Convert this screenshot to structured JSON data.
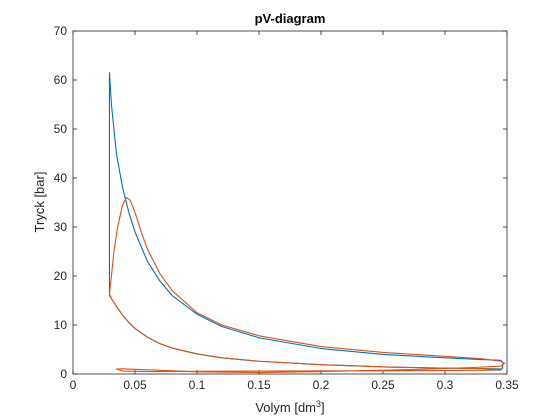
{
  "chart_data": {
    "type": "line",
    "title": "pV-diagram",
    "xlabel_main": "Volym [dm",
    "xlabel_sup": "3",
    "xlabel_close": "]",
    "ylabel": "Tryck [bar]",
    "xlim": [
      0,
      0.35
    ],
    "ylim": [
      0,
      70
    ],
    "grid": false,
    "legend": "none",
    "xticks": [
      0,
      0.05,
      0.1,
      0.15,
      0.2,
      0.25,
      0.3,
      0.35
    ],
    "xtick_labels": [
      "0",
      "0.05",
      "0.1",
      "0.15",
      "0.2",
      "0.25",
      "0.3",
      "0.35"
    ],
    "yticks": [
      0,
      10,
      20,
      30,
      40,
      50,
      60,
      70
    ],
    "ytick_labels": [
      "0",
      "10",
      "20",
      "30",
      "40",
      "50",
      "60",
      "70"
    ],
    "series": [
      {
        "color": "#0072bd",
        "x": [
          0.0294,
          0.0294,
          0.031,
          0.035,
          0.04,
          0.045,
          0.05,
          0.06,
          0.07,
          0.08,
          0.1,
          0.12,
          0.15,
          0.2,
          0.25,
          0.3,
          0.33,
          0.345,
          0.347,
          0.346,
          0.33,
          0.3,
          0.25,
          0.2,
          0.15,
          0.12,
          0.1,
          0.08,
          0.07,
          0.06,
          0.05,
          0.045,
          0.04,
          0.035,
          0.031,
          0.0294,
          0.0294
        ],
        "y": [
          16,
          61.5,
          55,
          45,
          38,
          33,
          29,
          23,
          19,
          16,
          12.2,
          9.7,
          7.4,
          5.2,
          4.0,
          3.3,
          2.95,
          2.8,
          2.3,
          1.0,
          1.1,
          1.2,
          1.45,
          1.9,
          2.6,
          3.3,
          4.1,
          5.3,
          6.2,
          7.5,
          9.3,
          10.5,
          12.0,
          13.8,
          15.4,
          16,
          16
        ]
      },
      {
        "color": "#d95319",
        "x": [
          0.0294,
          0.031,
          0.033,
          0.036,
          0.04,
          0.043,
          0.046,
          0.05,
          0.055,
          0.06,
          0.07,
          0.08,
          0.1,
          0.12,
          0.15,
          0.2,
          0.25,
          0.3,
          0.33,
          0.345,
          0.348,
          0.345,
          0.32,
          0.28,
          0.22,
          0.15,
          0.1,
          0.07,
          0.05,
          0.04,
          0.035,
          0.04,
          0.06,
          0.1,
          0.15,
          0.2,
          0.25,
          0.3,
          0.345,
          0.33,
          0.3,
          0.25,
          0.2,
          0.15,
          0.12,
          0.1,
          0.08,
          0.07,
          0.06,
          0.05,
          0.045,
          0.04,
          0.035,
          0.031,
          0.0294
        ],
        "y": [
          16.3,
          20,
          25,
          30,
          34.5,
          36,
          35.5,
          33,
          29,
          25.5,
          20.5,
          17,
          12.5,
          10,
          7.8,
          5.6,
          4.4,
          3.6,
          3.1,
          2.6,
          2.2,
          1.6,
          1.3,
          0.95,
          0.6,
          0.3,
          0.45,
          0.75,
          0.95,
          1.05,
          1.0,
          0.6,
          0.5,
          0.55,
          0.6,
          0.62,
          0.65,
          0.7,
          0.8,
          1.1,
          1.2,
          1.45,
          1.9,
          2.6,
          3.3,
          4.1,
          5.3,
          6.2,
          7.5,
          9.3,
          10.5,
          12.0,
          13.8,
          15.4,
          16.3
        ]
      }
    ]
  }
}
